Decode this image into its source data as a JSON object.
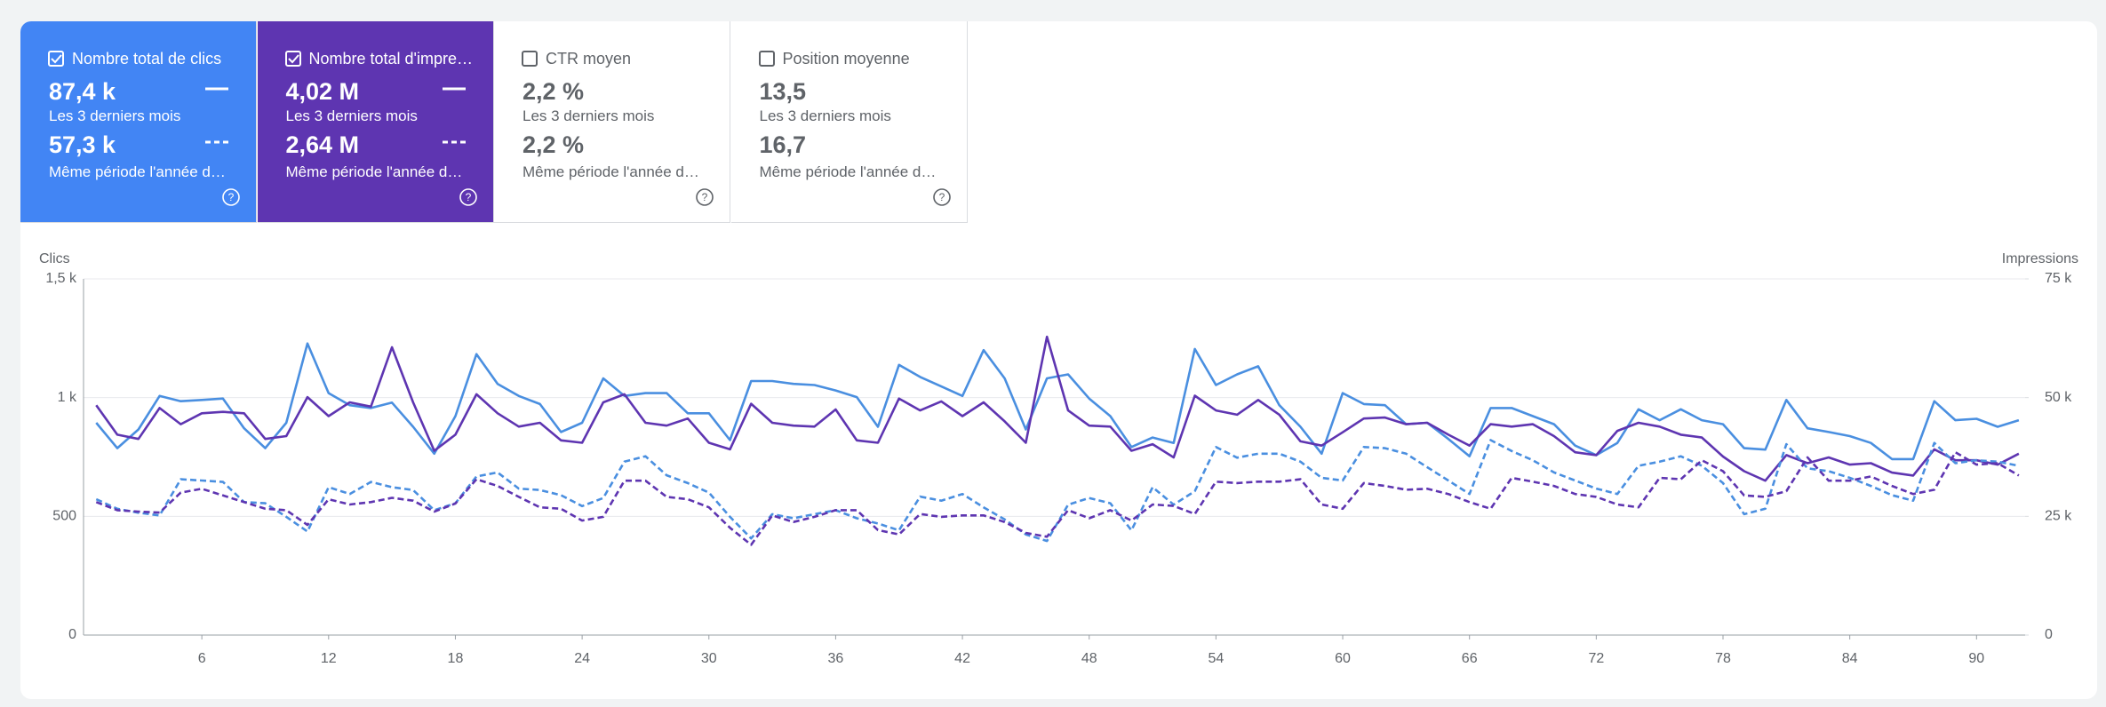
{
  "cards": [
    {
      "label": "Nombre total de clics",
      "value": "87,4 k",
      "period": "Les 3 derniers mois",
      "value_prev": "57,3 k",
      "period_prev": "Même période l'année d…",
      "checked": true,
      "color": "#4285f4"
    },
    {
      "label": "Nombre total d'impre…",
      "value": "4,02 M",
      "period": "Les 3 derniers mois",
      "value_prev": "2,64 M",
      "period_prev": "Même période l'année d…",
      "checked": true,
      "color": "#5e35b1"
    },
    {
      "label": "CTR moyen",
      "value": "2,2 %",
      "period": "Les 3 derniers mois",
      "value_prev": "2,2 %",
      "period_prev": "Même période l'année d…",
      "checked": false,
      "color": "#ffffff"
    },
    {
      "label": "Position moyenne",
      "value": "13,5",
      "period": "Les 3 derniers mois",
      "value_prev": "16,7",
      "period_prev": "Même période l'année d…",
      "checked": false,
      "color": "#ffffff"
    }
  ],
  "chart_data": {
    "type": "line",
    "y_label": "Clics",
    "y2_label": "Impressions",
    "x": [
      1,
      2,
      3,
      4,
      5,
      6,
      7,
      8,
      9,
      10,
      11,
      12,
      13,
      14,
      15,
      16,
      17,
      18,
      19,
      20,
      21,
      22,
      23,
      24,
      25,
      26,
      27,
      28,
      29,
      30,
      31,
      32,
      33,
      34,
      35,
      36,
      37,
      38,
      39,
      40,
      41,
      42,
      43,
      44,
      45,
      46,
      47,
      48,
      49,
      50,
      51,
      52,
      53,
      54,
      55,
      56,
      57,
      58,
      59,
      60,
      61,
      62,
      63,
      64,
      65,
      66,
      67,
      68,
      69,
      70,
      71,
      72,
      73,
      74,
      75,
      76,
      77,
      78,
      79,
      80,
      81,
      82,
      83,
      84,
      85,
      86,
      87,
      88,
      89,
      90,
      91,
      92
    ],
    "xlim": [
      0.4,
      92.3
    ],
    "xticks": [
      6,
      12,
      18,
      24,
      30,
      36,
      42,
      48,
      54,
      60,
      66,
      72,
      78,
      84,
      90
    ],
    "ylim": [
      0,
      1500
    ],
    "yticks": [
      0,
      500,
      {
        "value": 1000,
        "label": "1 k"
      },
      {
        "value": 1500,
        "label": "1,5 k"
      }
    ],
    "y2lim": [
      0,
      75000
    ],
    "y2ticks": [
      0,
      {
        "value": 25000,
        "label": "25 k"
      },
      {
        "value": 50000,
        "label": "50 k"
      },
      {
        "value": 75000,
        "label": "75 k"
      }
    ],
    "grid": true,
    "series": [
      {
        "color": "#4a8fe0",
        "dashed": false,
        "axis": "y",
        "values": [
          894,
          787,
          866,
          1007,
          985,
          990,
          996,
          871,
          787,
          894,
          1228,
          1019,
          968,
          956,
          979,
          877,
          764,
          922,
          1183,
          1058,
          1007,
          973,
          855,
          894,
          1081,
          1007,
          1019,
          1019,
          934,
          934,
          821,
          1070,
          1070,
          1058,
          1053,
          1030,
          1002,
          877,
          1138,
          1087,
          1047,
          1007,
          1200,
          1081,
          866,
          1081,
          1098,
          996,
          922,
          792,
          832,
          809,
          1205,
          1053,
          1098,
          1132,
          968,
          877,
          764,
          1019,
          973,
          968,
          888,
          894,
          826,
          753,
          956,
          956,
          922,
          888,
          798,
          758,
          809,
          951,
          905,
          951,
          905,
          888,
          787,
          781,
          990,
          871,
          855,
          838,
          809,
          741,
          741,
          985,
          905,
          911,
          877,
          905
        ]
      },
      {
        "color": "#5e35b1",
        "dashed": false,
        "axis": "y2",
        "values": [
          48400,
          42200,
          41300,
          47800,
          44400,
          46700,
          47000,
          46700,
          41300,
          41900,
          50100,
          46100,
          49000,
          48100,
          60600,
          49000,
          38800,
          42200,
          50700,
          46700,
          43900,
          44700,
          41000,
          40500,
          49000,
          50700,
          44700,
          44100,
          45600,
          40500,
          39100,
          48700,
          44700,
          44100,
          43900,
          47500,
          41000,
          40500,
          49800,
          47300,
          49200,
          46100,
          49000,
          45000,
          40500,
          62800,
          47300,
          44100,
          43900,
          38800,
          40200,
          37400,
          50400,
          47300,
          46400,
          49500,
          46400,
          40800,
          39900,
          42700,
          45600,
          45800,
          44400,
          44700,
          42200,
          39900,
          44400,
          43900,
          44400,
          41900,
          38500,
          37900,
          43000,
          44700,
          43900,
          42200,
          41600,
          37600,
          34500,
          32500,
          37900,
          36200,
          37400,
          35900,
          36200,
          34200,
          33600,
          39100,
          36800,
          36800,
          35900,
          38200
        ]
      },
      {
        "color": "#4a8fe0",
        "dashed": true,
        "axis": "y",
        "values": [
          572,
          532,
          515,
          504,
          656,
          651,
          645,
          560,
          555,
          498,
          436,
          623,
          594,
          645,
          623,
          611,
          526,
          555,
          668,
          685,
          617,
          611,
          589,
          543,
          577,
          730,
          753,
          673,
          640,
          600,
          498,
          407,
          509,
          492,
          509,
          526,
          492,
          470,
          441,
          583,
          566,
          594,
          538,
          487,
          424,
          396,
          549,
          577,
          555,
          441,
          623,
          549,
          606,
          792,
          747,
          764,
          764,
          730,
          662,
          651,
          792,
          787,
          764,
          707,
          651,
          594,
          821,
          775,
          736,
          685,
          651,
          617,
          594,
          713,
          730,
          753,
          713,
          640,
          509,
          532,
          804,
          702,
          690,
          662,
          628,
          589,
          566,
          809,
          724,
          736,
          730,
          713
        ]
      },
      {
        "color": "#5e35b1",
        "dashed": true,
        "axis": "y2",
        "values": [
          28000,
          26300,
          26000,
          25800,
          30000,
          30800,
          29400,
          28000,
          26600,
          26300,
          23200,
          28600,
          27500,
          28000,
          28900,
          28300,
          26000,
          27700,
          32800,
          31400,
          29100,
          26900,
          26600,
          24100,
          24900,
          32500,
          32500,
          29100,
          28600,
          26900,
          22600,
          19000,
          25200,
          23800,
          24900,
          26300,
          26300,
          22100,
          21200,
          25500,
          24900,
          25200,
          25200,
          23800,
          21500,
          20700,
          26300,
          24600,
          26300,
          24100,
          27500,
          27200,
          25500,
          32300,
          32000,
          32300,
          32300,
          32800,
          27500,
          26600,
          32000,
          31400,
          30600,
          30800,
          29700,
          28000,
          26600,
          33100,
          32300,
          31400,
          29700,
          29100,
          27500,
          26900,
          33100,
          32800,
          36800,
          34500,
          29400,
          29100,
          30300,
          37400,
          32500,
          32500,
          33400,
          31400,
          29700,
          30600,
          38500,
          35900,
          36200,
          33600
        ]
      }
    ]
  }
}
